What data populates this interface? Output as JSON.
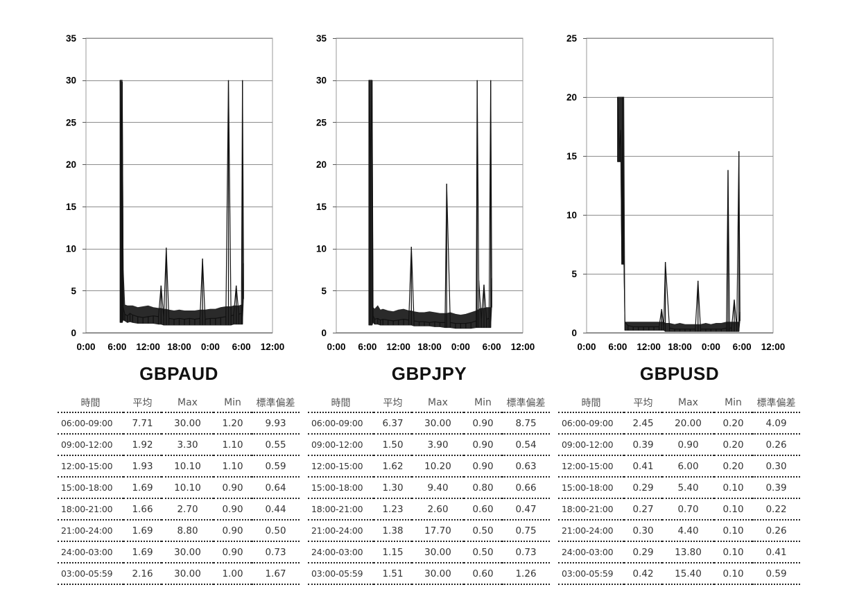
{
  "chart_data": [
    {
      "type": "line",
      "title": "GBPAUD",
      "x_ticks": [
        "0:00",
        "6:00",
        "12:00",
        "18:00",
        "0:00",
        "6:00",
        "12:00"
      ],
      "y_ticks": [
        0,
        5,
        10,
        15,
        20,
        25,
        30,
        35
      ],
      "ylim": [
        0,
        35
      ],
      "xlim_hours": [
        0,
        36
      ],
      "grid": true,
      "series": [
        {
          "x": [
            6.6,
            6.8,
            7.0,
            7.2,
            7.5,
            8.0,
            8.5,
            9.0,
            10.0,
            11.0,
            12.0,
            13.0,
            14.0,
            14.5,
            15.0,
            15.5,
            16.0,
            17.0,
            18.0,
            19.0,
            20.0,
            21.0,
            22.0,
            22.5,
            23.0,
            24.0,
            25.0,
            26.0,
            27.0,
            27.5,
            28.0,
            28.5,
            29.0,
            29.5,
            30.0,
            30.2,
            30.4
          ],
          "y": [
            30.0,
            22.0,
            29.8,
            3.0,
            2.2,
            2.0,
            2.3,
            2.1,
            1.9,
            1.8,
            1.9,
            2.0,
            1.9,
            5.6,
            1.8,
            10.1,
            1.7,
            1.6,
            1.7,
            1.6,
            1.7,
            1.6,
            1.7,
            8.8,
            1.6,
            1.7,
            1.7,
            1.8,
            1.9,
            30.0,
            2.0,
            2.1,
            5.6,
            2.2,
            2.3,
            30.0,
            8.3
          ],
          "band_low": [
            1.2,
            1.2,
            1.2,
            1.5,
            1.4,
            1.2,
            1.3,
            1.2,
            1.1,
            1.1,
            1.1,
            1.1,
            1.0,
            1.0,
            0.9,
            0.9,
            0.9,
            0.9,
            0.9,
            0.9,
            0.9,
            0.9,
            0.9,
            0.9,
            0.9,
            0.9,
            0.9,
            0.9,
            0.9,
            0.9,
            0.9,
            1.0,
            1.0,
            1.0,
            1.0,
            1.0,
            4.0
          ],
          "band_high": [
            30.0,
            30.0,
            30.0,
            7.5,
            3.3,
            3.2,
            3.2,
            3.2,
            3.0,
            3.1,
            3.2,
            3.0,
            2.9,
            2.9,
            2.8,
            2.8,
            2.7,
            2.6,
            2.7,
            2.6,
            2.6,
            2.6,
            2.7,
            2.7,
            2.7,
            2.8,
            2.8,
            3.0,
            3.1,
            3.1,
            3.1,
            3.2,
            3.2,
            3.2,
            3.3,
            3.3,
            8.3
          ]
        }
      ],
      "table": {
        "headers": [
          "時間",
          "平均",
          "Max",
          "Min",
          "標準偏差"
        ],
        "rows": [
          [
            "06:00-09:00",
            "7.71",
            "30.00",
            "1.20",
            "9.93"
          ],
          [
            "09:00-12:00",
            "1.92",
            "3.30",
            "1.10",
            "0.55"
          ],
          [
            "12:00-15:00",
            "1.93",
            "10.10",
            "1.10",
            "0.59"
          ],
          [
            "15:00-18:00",
            "1.69",
            "10.10",
            "0.90",
            "0.64"
          ],
          [
            "18:00-21:00",
            "1.66",
            "2.70",
            "0.90",
            "0.44"
          ],
          [
            "21:00-24:00",
            "1.69",
            "8.80",
            "0.90",
            "0.50"
          ],
          [
            "24:00-03:00",
            "1.69",
            "30.00",
            "0.90",
            "0.73"
          ],
          [
            "03:00-05:59",
            "2.16",
            "30.00",
            "1.00",
            "1.67"
          ]
        ]
      }
    },
    {
      "type": "line",
      "title": "GBPJPY",
      "x_ticks": [
        "0:00",
        "6:00",
        "12:00",
        "18:00",
        "0:00",
        "6:00",
        "12:00"
      ],
      "y_ticks": [
        0,
        5,
        10,
        15,
        20,
        25,
        30,
        35
      ],
      "ylim": [
        0,
        35
      ],
      "xlim_hours": [
        0,
        36
      ],
      "grid": true,
      "series": [
        {
          "x": [
            6.3,
            6.6,
            6.9,
            7.1,
            7.4,
            8.0,
            8.5,
            9.0,
            10.0,
            11.0,
            12.0,
            13.0,
            14.0,
            14.5,
            15.0,
            16.0,
            17.0,
            18.0,
            19.0,
            20.0,
            21.0,
            21.3,
            22.0,
            23.0,
            24.0,
            25.0,
            26.0,
            27.0,
            27.2,
            27.5,
            28.0,
            28.5,
            29.0,
            29.5,
            29.8,
            30.0
          ],
          "y": [
            30.0,
            20.0,
            30.0,
            2.0,
            1.6,
            1.7,
            1.5,
            1.6,
            1.5,
            1.4,
            1.5,
            1.6,
            1.5,
            10.2,
            1.4,
            1.3,
            1.3,
            1.2,
            1.3,
            1.2,
            1.2,
            17.7,
            1.2,
            1.1,
            1.1,
            1.1,
            1.2,
            1.4,
            30.0,
            6.2,
            1.5,
            5.7,
            1.6,
            1.7,
            30.0,
            6.5
          ],
          "band_low": [
            0.9,
            0.9,
            0.9,
            1.2,
            1.0,
            1.0,
            0.9,
            0.9,
            0.9,
            0.9,
            0.9,
            0.9,
            0.9,
            0.9,
            0.8,
            0.8,
            0.8,
            0.8,
            0.7,
            0.7,
            0.6,
            0.6,
            0.6,
            0.5,
            0.5,
            0.5,
            0.5,
            0.6,
            0.6,
            0.6,
            0.6,
            0.6,
            0.6,
            0.6,
            0.6,
            3.0
          ],
          "band_high": [
            30.0,
            30.0,
            30.0,
            3.0,
            2.8,
            3.2,
            2.7,
            2.8,
            2.6,
            2.5,
            2.7,
            2.8,
            2.6,
            2.6,
            2.5,
            2.4,
            2.4,
            2.5,
            2.4,
            2.3,
            2.3,
            2.3,
            2.4,
            2.2,
            2.1,
            2.2,
            2.4,
            2.6,
            2.6,
            2.8,
            2.9,
            2.9,
            3.0,
            3.0,
            3.0,
            6.5
          ]
        }
      ],
      "table": {
        "headers": [
          "時間",
          "平均",
          "Max",
          "Min",
          "標準偏差"
        ],
        "rows": [
          [
            "06:00-09:00",
            "6.37",
            "30.00",
            "0.90",
            "8.75"
          ],
          [
            "09:00-12:00",
            "1.50",
            "3.90",
            "0.90",
            "0.54"
          ],
          [
            "12:00-15:00",
            "1.62",
            "10.20",
            "0.90",
            "0.63"
          ],
          [
            "15:00-18:00",
            "1.30",
            "9.40",
            "0.80",
            "0.66"
          ],
          [
            "18:00-21:00",
            "1.23",
            "2.60",
            "0.60",
            "0.47"
          ],
          [
            "21:00-24:00",
            "1.38",
            "17.70",
            "0.50",
            "0.75"
          ],
          [
            "24:00-03:00",
            "1.15",
            "30.00",
            "0.50",
            "0.73"
          ],
          [
            "03:00-05:59",
            "1.51",
            "30.00",
            "0.60",
            "1.26"
          ]
        ]
      }
    },
    {
      "type": "line",
      "title": "GBPUSD",
      "x_ticks": [
        "0:00",
        "6:00",
        "12:00",
        "18:00",
        "0:00",
        "6:00",
        "12:00"
      ],
      "y_ticks": [
        0,
        5,
        10,
        15,
        20,
        25
      ],
      "ylim": [
        0,
        25
      ],
      "xlim_hours": [
        0,
        36
      ],
      "grid": true,
      "series": [
        {
          "x": [
            6.0,
            6.3,
            6.6,
            6.8,
            7.0,
            7.2,
            7.4,
            8.0,
            9.0,
            10.0,
            11.0,
            12.0,
            13.0,
            14.0,
            14.5,
            14.9,
            15.2,
            16.0,
            17.0,
            18.0,
            19.0,
            20.0,
            21.0,
            21.5,
            22.0,
            23.0,
            24.0,
            25.0,
            26.0,
            27.0,
            27.3,
            27.6,
            28.0,
            28.5,
            29.0,
            29.4,
            29.6
          ],
          "y": [
            20.0,
            15.5,
            17.2,
            6.0,
            20.0,
            6.5,
            0.9,
            0.6,
            0.5,
            0.5,
            0.5,
            0.5,
            0.5,
            0.5,
            2.0,
            0.5,
            6.0,
            0.4,
            0.3,
            0.3,
            0.3,
            0.3,
            0.3,
            4.4,
            0.3,
            0.3,
            0.3,
            0.3,
            0.3,
            0.4,
            13.8,
            0.4,
            0.4,
            2.8,
            0.4,
            15.4,
            1.8
          ],
          "band_low": [
            14.5,
            14.5,
            14.5,
            5.8,
            5.8,
            5.8,
            0.2,
            0.2,
            0.2,
            0.2,
            0.2,
            0.2,
            0.2,
            0.2,
            0.2,
            0.2,
            0.1,
            0.1,
            0.1,
            0.1,
            0.1,
            0.1,
            0.1,
            0.1,
            0.1,
            0.1,
            0.1,
            0.1,
            0.1,
            0.1,
            0.1,
            0.1,
            0.1,
            0.1,
            0.1,
            0.1,
            1.0
          ],
          "band_high": [
            20.0,
            20.0,
            20.0,
            20.0,
            20.0,
            20.0,
            0.9,
            0.9,
            0.9,
            0.9,
            0.9,
            0.9,
            0.9,
            0.9,
            0.9,
            0.9,
            0.8,
            0.8,
            0.7,
            0.8,
            0.7,
            0.7,
            0.7,
            0.7,
            0.7,
            0.8,
            0.7,
            0.8,
            0.8,
            0.9,
            0.9,
            0.9,
            0.9,
            0.9,
            0.9,
            0.9,
            1.8
          ]
        }
      ],
      "table": {
        "headers": [
          "時間",
          "平均",
          "Max",
          "Min",
          "標準偏差"
        ],
        "rows": [
          [
            "06:00-09:00",
            "2.45",
            "20.00",
            "0.20",
            "4.09"
          ],
          [
            "09:00-12:00",
            "0.39",
            "0.90",
            "0.20",
            "0.26"
          ],
          [
            "12:00-15:00",
            "0.41",
            "6.00",
            "0.20",
            "0.30"
          ],
          [
            "15:00-18:00",
            "0.29",
            "5.40",
            "0.10",
            "0.39"
          ],
          [
            "18:00-21:00",
            "0.27",
            "0.70",
            "0.10",
            "0.22"
          ],
          [
            "21:00-24:00",
            "0.30",
            "4.40",
            "0.10",
            "0.26"
          ],
          [
            "24:00-03:00",
            "0.29",
            "13.80",
            "0.10",
            "0.41"
          ],
          [
            "03:00-05:59",
            "0.42",
            "15.40",
            "0.10",
            "0.59"
          ]
        ]
      }
    }
  ]
}
